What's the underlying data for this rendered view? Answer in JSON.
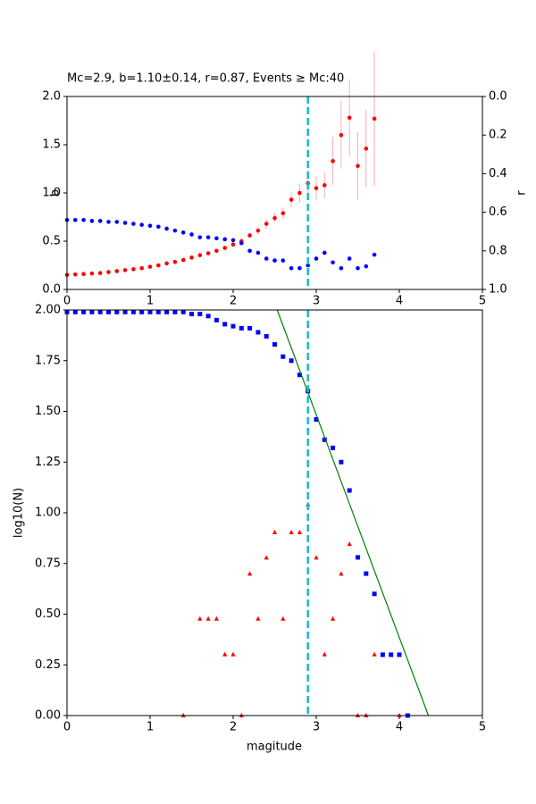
{
  "chart_data": [
    {
      "type": "scatter",
      "title": "Mc=2.9, b=1.10±0.14, r=0.87, Events ≥ Mc:40",
      "ylabel": "b",
      "y2label": "r",
      "xlim": [
        0,
        5
      ],
      "xticks": [
        0,
        1,
        2,
        3,
        4,
        5
      ],
      "ylim": [
        0,
        2
      ],
      "yticks": [
        {
          "value": 0,
          "label": "0.0"
        },
        {
          "value": 0.5,
          "label": "0.5"
        },
        {
          "value": 1,
          "label": "1.0"
        },
        {
          "value": 1.5,
          "label": "1.5"
        },
        {
          "value": 2,
          "label": "2.0"
        }
      ],
      "y2lim": [
        1,
        0
      ],
      "y2ticks": [
        {
          "value": 0,
          "label": "0.0"
        },
        {
          "value": 0.2,
          "label": "0.2"
        },
        {
          "value": 0.4,
          "label": "0.4"
        },
        {
          "value": 0.6,
          "label": "0.6"
        },
        {
          "value": 0.8,
          "label": "0.8"
        },
        {
          "value": 1,
          "label": "1.0"
        }
      ],
      "vline": 2.9,
      "vline_color": "#17becf",
      "series": [
        {
          "marker": "circle",
          "color": "#ff0000",
          "error_color": "#f7b0b0",
          "x": [
            0,
            0.1,
            0.2,
            0.3,
            0.4,
            0.5,
            0.6,
            0.7,
            0.8,
            0.9,
            1.0,
            1.1,
            1.2,
            1.3,
            1.4,
            1.5,
            1.6,
            1.7,
            1.8,
            1.9,
            2.0,
            2.1,
            2.2,
            2.3,
            2.4,
            2.5,
            2.6,
            2.7,
            2.8,
            2.9,
            3.0,
            3.1,
            3.2,
            3.3,
            3.4,
            3.5,
            3.6,
            3.7
          ],
          "values": [
            0.15,
            0.155,
            0.16,
            0.165,
            0.17,
            0.18,
            0.19,
            0.2,
            0.21,
            0.22,
            0.235,
            0.25,
            0.27,
            0.285,
            0.305,
            0.33,
            0.355,
            0.375,
            0.4,
            0.43,
            0.465,
            0.5,
            0.56,
            0.61,
            0.68,
            0.74,
            0.79,
            0.93,
            1.0,
            1.1,
            1.05,
            1.08,
            1.33,
            1.6,
            1.78,
            1.28,
            1.46,
            1.77
          ],
          "errors": [
            0.01,
            0.01,
            0.01,
            0.01,
            0.01,
            0.01,
            0.01,
            0.01,
            0.01,
            0.01,
            0.01,
            0.01,
            0.01,
            0.01,
            0.01,
            0.015,
            0.015,
            0.015,
            0.02,
            0.02,
            0.02,
            0.03,
            0.03,
            0.04,
            0.05,
            0.05,
            0.06,
            0.08,
            0.1,
            0.14,
            0.12,
            0.13,
            0.25,
            0.35,
            0.4,
            0.35,
            0.4,
            0.7
          ]
        },
        {
          "marker": "circle",
          "color": "#0000ff",
          "axis": "y2",
          "x": [
            0,
            0.1,
            0.2,
            0.3,
            0.4,
            0.5,
            0.6,
            0.7,
            0.8,
            0.9,
            1.0,
            1.1,
            1.2,
            1.3,
            1.4,
            1.5,
            1.6,
            1.7,
            1.8,
            1.9,
            2.0,
            2.1,
            2.2,
            2.3,
            2.4,
            2.5,
            2.6,
            2.7,
            2.8,
            2.9,
            3.0,
            3.1,
            3.2,
            3.3,
            3.4,
            3.5,
            3.6,
            3.7
          ],
          "values": [
            0.64,
            0.64,
            0.64,
            0.645,
            0.645,
            0.65,
            0.65,
            0.655,
            0.66,
            0.665,
            0.67,
            0.675,
            0.685,
            0.695,
            0.705,
            0.715,
            0.73,
            0.73,
            0.735,
            0.74,
            0.745,
            0.76,
            0.8,
            0.81,
            0.84,
            0.85,
            0.85,
            0.89,
            0.89,
            0.875,
            0.84,
            0.81,
            0.86,
            0.89,
            0.84,
            0.89,
            0.88,
            0.82
          ]
        }
      ]
    },
    {
      "type": "scatter",
      "xlabel": "magitude",
      "ylabel": "log10(N)",
      "xlim": [
        0,
        5
      ],
      "xticks": [
        0,
        1,
        2,
        3,
        4,
        5
      ],
      "ylim": [
        0,
        2
      ],
      "yticks": [
        {
          "value": 0,
          "label": "0.00"
        },
        {
          "value": 0.25,
          "label": "0.25"
        },
        {
          "value": 0.5,
          "label": "0.50"
        },
        {
          "value": 0.75,
          "label": "0.75"
        },
        {
          "value": 1,
          "label": "1.00"
        },
        {
          "value": 1.25,
          "label": "1.25"
        },
        {
          "value": 1.5,
          "label": "1.50"
        },
        {
          "value": 1.75,
          "label": "1.75"
        },
        {
          "value": 2,
          "label": "2.00"
        }
      ],
      "vline": 2.9,
      "vline_color": "#17becf",
      "series": [
        {
          "marker": "square",
          "color": "#0000ff",
          "x": [
            0,
            0.1,
            0.2,
            0.3,
            0.4,
            0.5,
            0.6,
            0.7,
            0.8,
            0.9,
            1.0,
            1.1,
            1.2,
            1.3,
            1.4,
            1.5,
            1.6,
            1.7,
            1.8,
            1.9,
            2.0,
            2.1,
            2.2,
            2.3,
            2.4,
            2.5,
            2.6,
            2.7,
            2.8,
            2.9,
            3.0,
            3.1,
            3.2,
            3.3,
            3.4,
            3.5,
            3.6,
            3.7,
            3.8,
            3.9,
            4.0,
            4.1
          ],
          "values": [
            1.99,
            1.99,
            1.99,
            1.99,
            1.99,
            1.99,
            1.99,
            1.99,
            1.99,
            1.99,
            1.99,
            1.99,
            1.99,
            1.99,
            1.99,
            1.98,
            1.98,
            1.97,
            1.95,
            1.93,
            1.92,
            1.91,
            1.91,
            1.89,
            1.87,
            1.83,
            1.77,
            1.75,
            1.68,
            1.6,
            1.46,
            1.36,
            1.32,
            1.25,
            1.11,
            0.78,
            0.7,
            0.6,
            0.3,
            0.3,
            0.3,
            0
          ]
        },
        {
          "marker": "triangle",
          "color": "#ff0000",
          "x": [
            1.4,
            1.6,
            1.7,
            1.8,
            1.9,
            2.0,
            2.1,
            2.2,
            2.3,
            2.4,
            2.5,
            2.6,
            2.7,
            2.8,
            2.9,
            3.0,
            3.1,
            3.2,
            3.3,
            3.4,
            3.5,
            3.6,
            3.7,
            4.0
          ],
          "values": [
            0,
            0.477,
            0.477,
            0.477,
            0.301,
            0.301,
            0,
            0.699,
            0.477,
            0.778,
            0.903,
            0.477,
            0.903,
            0.903,
            1.041,
            0.778,
            0.301,
            0.477,
            0.699,
            0.845,
            0,
            0,
            0.301,
            0
          ]
        },
        {
          "marker": "line",
          "color": "#008000",
          "x": [
            2.53,
            4.35
          ],
          "values": [
            2.0,
            0.0
          ]
        }
      ]
    }
  ]
}
